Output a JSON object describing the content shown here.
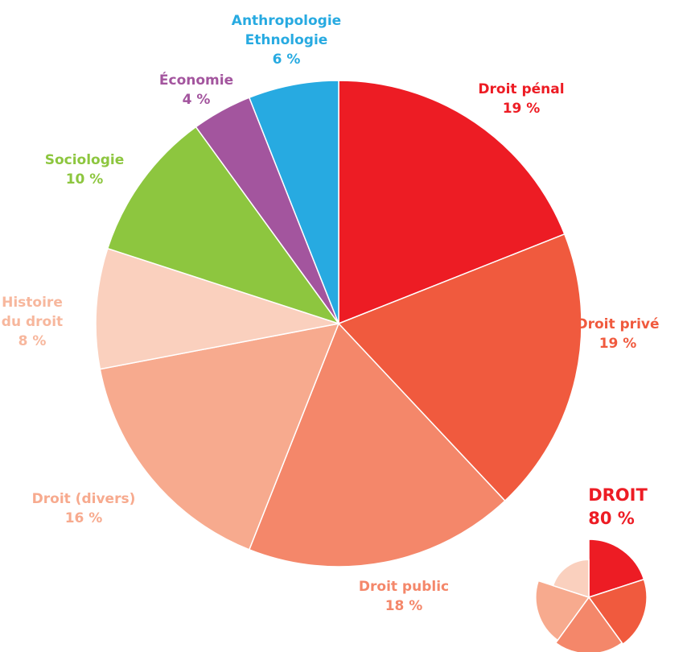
{
  "chart_data": {
    "type": "pie",
    "title": "",
    "slices": [
      {
        "label_lines": [
          "Droit pénal"
        ],
        "value": 19,
        "value_label": "19 %",
        "color": "#ED1C24"
      },
      {
        "label_lines": [
          "Droit privé"
        ],
        "value": 19,
        "value_label": "19 %",
        "color": "#F05A3E"
      },
      {
        "label_lines": [
          "Droit public"
        ],
        "value": 18,
        "value_label": "18 %",
        "color": "#F4876A"
      },
      {
        "label_lines": [
          "Droit (divers)"
        ],
        "value": 16,
        "value_label": "16 %",
        "color": "#F7AA8E"
      },
      {
        "label_lines": [
          "Histoire",
          "du droit"
        ],
        "value": 8,
        "value_label": "8 %",
        "color": "#FAD0BE"
      },
      {
        "label_lines": [
          "Sociologie"
        ],
        "value": 10,
        "value_label": "10 %",
        "color": "#8DC63F"
      },
      {
        "label_lines": [
          "Économie"
        ],
        "value": 4,
        "value_label": "4 %",
        "color": "#A3559E"
      },
      {
        "label_lines": [
          "Anthropologie",
          "Ethnologie"
        ],
        "value": 6,
        "value_label": "6 %",
        "color": "#27AAE1"
      }
    ],
    "inset": {
      "title": "DROIT",
      "value_label": "80 %",
      "value": 80,
      "title_color": "#ED1C24"
    }
  }
}
